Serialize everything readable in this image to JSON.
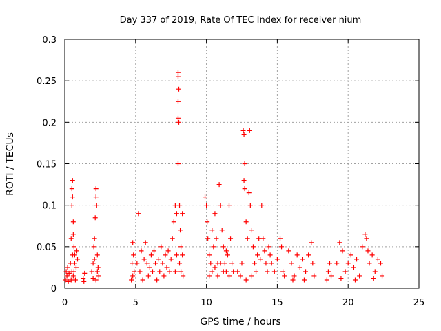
{
  "chart_data": {
    "type": "scatter",
    "title": "Day 337 of 2019, Rate Of TEC Index for receiver nium",
    "xlabel": "GPS time / hours",
    "ylabel": "ROTI / TECUs",
    "xlim": [
      0,
      25
    ],
    "ylim": [
      0,
      0.3
    ],
    "x_ticks": [
      0,
      5,
      10,
      15,
      20,
      25
    ],
    "y_ticks": [
      0,
      0.05,
      0.1,
      0.15,
      0.2,
      0.25,
      0.3
    ],
    "x_tick_labels": [
      "0",
      "5",
      "10",
      "15",
      "20",
      "25"
    ],
    "y_tick_labels": [
      "0",
      "0.05",
      "0.1",
      "0.15",
      "0.2",
      "0.25",
      "0.3"
    ],
    "grid": true,
    "legend": "none",
    "marker": "plus",
    "color": "#ff0000",
    "series": [
      {
        "points": [
          [
            0.05,
            0.01
          ],
          [
            0.1,
            0.02
          ],
          [
            0.15,
            0.015
          ],
          [
            0.2,
            0.025
          ],
          [
            0.25,
            0.008
          ],
          [
            0.3,
            0.018
          ],
          [
            0.4,
            0.03
          ],
          [
            0.45,
            0.06
          ],
          [
            0.5,
            0.1
          ],
          [
            0.5,
            0.12
          ],
          [
            0.55,
            0.13
          ],
          [
            0.55,
            0.11
          ],
          [
            0.6,
            0.08
          ],
          [
            0.6,
            0.065
          ],
          [
            0.65,
            0.05
          ],
          [
            0.7,
            0.04
          ],
          [
            0.5,
            0.02
          ],
          [
            0.6,
            0.015
          ],
          [
            0.7,
            0.03
          ],
          [
            0.8,
            0.025
          ],
          [
            0.85,
            0.045
          ],
          [
            0.9,
            0.035
          ],
          [
            0.45,
            0.01
          ],
          [
            0.55,
            0.04
          ],
          [
            0.75,
            0.01
          ],
          [
            0.65,
            0.02
          ],
          [
            1.3,
            0.012
          ],
          [
            1.4,
            0.018
          ],
          [
            1.35,
            0.008
          ],
          [
            1.9,
            0.02
          ],
          [
            2.0,
            0.03
          ],
          [
            2.05,
            0.05
          ],
          [
            2.1,
            0.06
          ],
          [
            2.15,
            0.085
          ],
          [
            2.2,
            0.11
          ],
          [
            2.2,
            0.12
          ],
          [
            2.25,
            0.1
          ],
          [
            2.3,
            0.04
          ],
          [
            2.35,
            0.025
          ],
          [
            2.4,
            0.015
          ],
          [
            2.2,
            0.01
          ],
          [
            2.1,
            0.035
          ],
          [
            2.3,
            0.02
          ],
          [
            2.0,
            0.012
          ],
          [
            4.7,
            0.01
          ],
          [
            4.75,
            0.03
          ],
          [
            4.8,
            0.055
          ],
          [
            4.85,
            0.04
          ],
          [
            4.9,
            0.02
          ],
          [
            4.8,
            0.015
          ],
          [
            5.2,
            0.09
          ],
          [
            5.1,
            0.03
          ],
          [
            5.3,
            0.02
          ],
          [
            5.4,
            0.045
          ],
          [
            5.5,
            0.01
          ],
          [
            5.6,
            0.035
          ],
          [
            5.7,
            0.055
          ],
          [
            5.8,
            0.03
          ],
          [
            5.9,
            0.015
          ],
          [
            6.0,
            0.025
          ],
          [
            6.1,
            0.04
          ],
          [
            6.2,
            0.02
          ],
          [
            6.3,
            0.045
          ],
          [
            6.4,
            0.03
          ],
          [
            6.5,
            0.01
          ],
          [
            6.6,
            0.035
          ],
          [
            6.7,
            0.02
          ],
          [
            6.8,
            0.05
          ],
          [
            6.9,
            0.03
          ],
          [
            7.0,
            0.015
          ],
          [
            7.1,
            0.04
          ],
          [
            7.2,
            0.025
          ],
          [
            7.3,
            0.045
          ],
          [
            7.4,
            0.02
          ],
          [
            7.5,
            0.035
          ],
          [
            7.6,
            0.06
          ],
          [
            7.7,
            0.08
          ],
          [
            7.8,
            0.1
          ],
          [
            7.9,
            0.09
          ],
          [
            8.0,
            0.26
          ],
          [
            8.0,
            0.255
          ],
          [
            8.05,
            0.24
          ],
          [
            8.0,
            0.225
          ],
          [
            8.05,
            0.2
          ],
          [
            8.0,
            0.205
          ],
          [
            8.0,
            0.15
          ],
          [
            8.1,
            0.1
          ],
          [
            8.15,
            0.07
          ],
          [
            8.2,
            0.05
          ],
          [
            8.3,
            0.09
          ],
          [
            8.1,
            0.03
          ],
          [
            8.2,
            0.02
          ],
          [
            8.3,
            0.04
          ],
          [
            8.35,
            0.015
          ],
          [
            7.8,
            0.02
          ],
          [
            7.9,
            0.04
          ],
          [
            9.9,
            0.11
          ],
          [
            10.0,
            0.1
          ],
          [
            10.05,
            0.08
          ],
          [
            10.1,
            0.06
          ],
          [
            10.2,
            0.04
          ],
          [
            10.3,
            0.03
          ],
          [
            10.4,
            0.07
          ],
          [
            10.5,
            0.05
          ],
          [
            10.6,
            0.09
          ],
          [
            10.7,
            0.06
          ],
          [
            10.8,
            0.03
          ],
          [
            10.9,
            0.125
          ],
          [
            11.0,
            0.1
          ],
          [
            11.1,
            0.07
          ],
          [
            11.2,
            0.05
          ],
          [
            11.3,
            0.03
          ],
          [
            11.4,
            0.02
          ],
          [
            11.5,
            0.04
          ],
          [
            11.6,
            0.1
          ],
          [
            11.7,
            0.06
          ],
          [
            11.8,
            0.03
          ],
          [
            11.9,
            0.02
          ],
          [
            10.2,
            0.015
          ],
          [
            10.4,
            0.02
          ],
          [
            10.6,
            0.025
          ],
          [
            10.8,
            0.015
          ],
          [
            11.0,
            0.03
          ],
          [
            11.2,
            0.02
          ],
          [
            11.4,
            0.045
          ],
          [
            11.6,
            0.015
          ],
          [
            12.2,
            0.02
          ],
          [
            12.4,
            0.015
          ],
          [
            12.5,
            0.03
          ],
          [
            12.6,
            0.19
          ],
          [
            12.65,
            0.185
          ],
          [
            12.7,
            0.15
          ],
          [
            12.65,
            0.13
          ],
          [
            12.7,
            0.12
          ],
          [
            12.8,
            0.08
          ],
          [
            12.9,
            0.06
          ],
          [
            13.0,
            0.115
          ],
          [
            13.05,
            0.19
          ],
          [
            13.1,
            0.1
          ],
          [
            13.2,
            0.07
          ],
          [
            13.3,
            0.05
          ],
          [
            13.4,
            0.03
          ],
          [
            13.5,
            0.02
          ],
          [
            13.6,
            0.04
          ],
          [
            13.7,
            0.06
          ],
          [
            13.8,
            0.035
          ],
          [
            13.9,
            0.1
          ],
          [
            14.0,
            0.06
          ],
          [
            14.1,
            0.045
          ],
          [
            14.2,
            0.03
          ],
          [
            14.3,
            0.02
          ],
          [
            14.4,
            0.05
          ],
          [
            14.5,
            0.04
          ],
          [
            14.6,
            0.03
          ],
          [
            14.8,
            0.02
          ],
          [
            15.0,
            0.035
          ],
          [
            15.2,
            0.06
          ],
          [
            15.3,
            0.05
          ],
          [
            15.4,
            0.02
          ],
          [
            15.5,
            0.015
          ],
          [
            12.8,
            0.01
          ],
          [
            13.2,
            0.015
          ],
          [
            15.8,
            0.045
          ],
          [
            16.0,
            0.03
          ],
          [
            16.2,
            0.015
          ],
          [
            16.4,
            0.04
          ],
          [
            16.6,
            0.025
          ],
          [
            16.8,
            0.035
          ],
          [
            17.0,
            0.02
          ],
          [
            17.2,
            0.04
          ],
          [
            17.4,
            0.055
          ],
          [
            17.5,
            0.03
          ],
          [
            17.6,
            0.015
          ],
          [
            16.1,
            0.01
          ],
          [
            16.9,
            0.01
          ],
          [
            18.5,
            0.01
          ],
          [
            18.6,
            0.02
          ],
          [
            18.7,
            0.03
          ],
          [
            18.8,
            0.015
          ],
          [
            19.2,
            0.03
          ],
          [
            19.4,
            0.055
          ],
          [
            19.6,
            0.045
          ],
          [
            19.8,
            0.02
          ],
          [
            20.0,
            0.03
          ],
          [
            20.2,
            0.04
          ],
          [
            20.4,
            0.025
          ],
          [
            20.6,
            0.035
          ],
          [
            20.8,
            0.015
          ],
          [
            21.0,
            0.05
          ],
          [
            21.2,
            0.065
          ],
          [
            21.3,
            0.06
          ],
          [
            21.4,
            0.045
          ],
          [
            21.5,
            0.03
          ],
          [
            21.7,
            0.04
          ],
          [
            21.9,
            0.02
          ],
          [
            22.1,
            0.035
          ],
          [
            22.3,
            0.03
          ],
          [
            22.4,
            0.015
          ],
          [
            19.5,
            0.012
          ],
          [
            20.5,
            0.01
          ],
          [
            21.8,
            0.012
          ]
        ]
      }
    ]
  }
}
